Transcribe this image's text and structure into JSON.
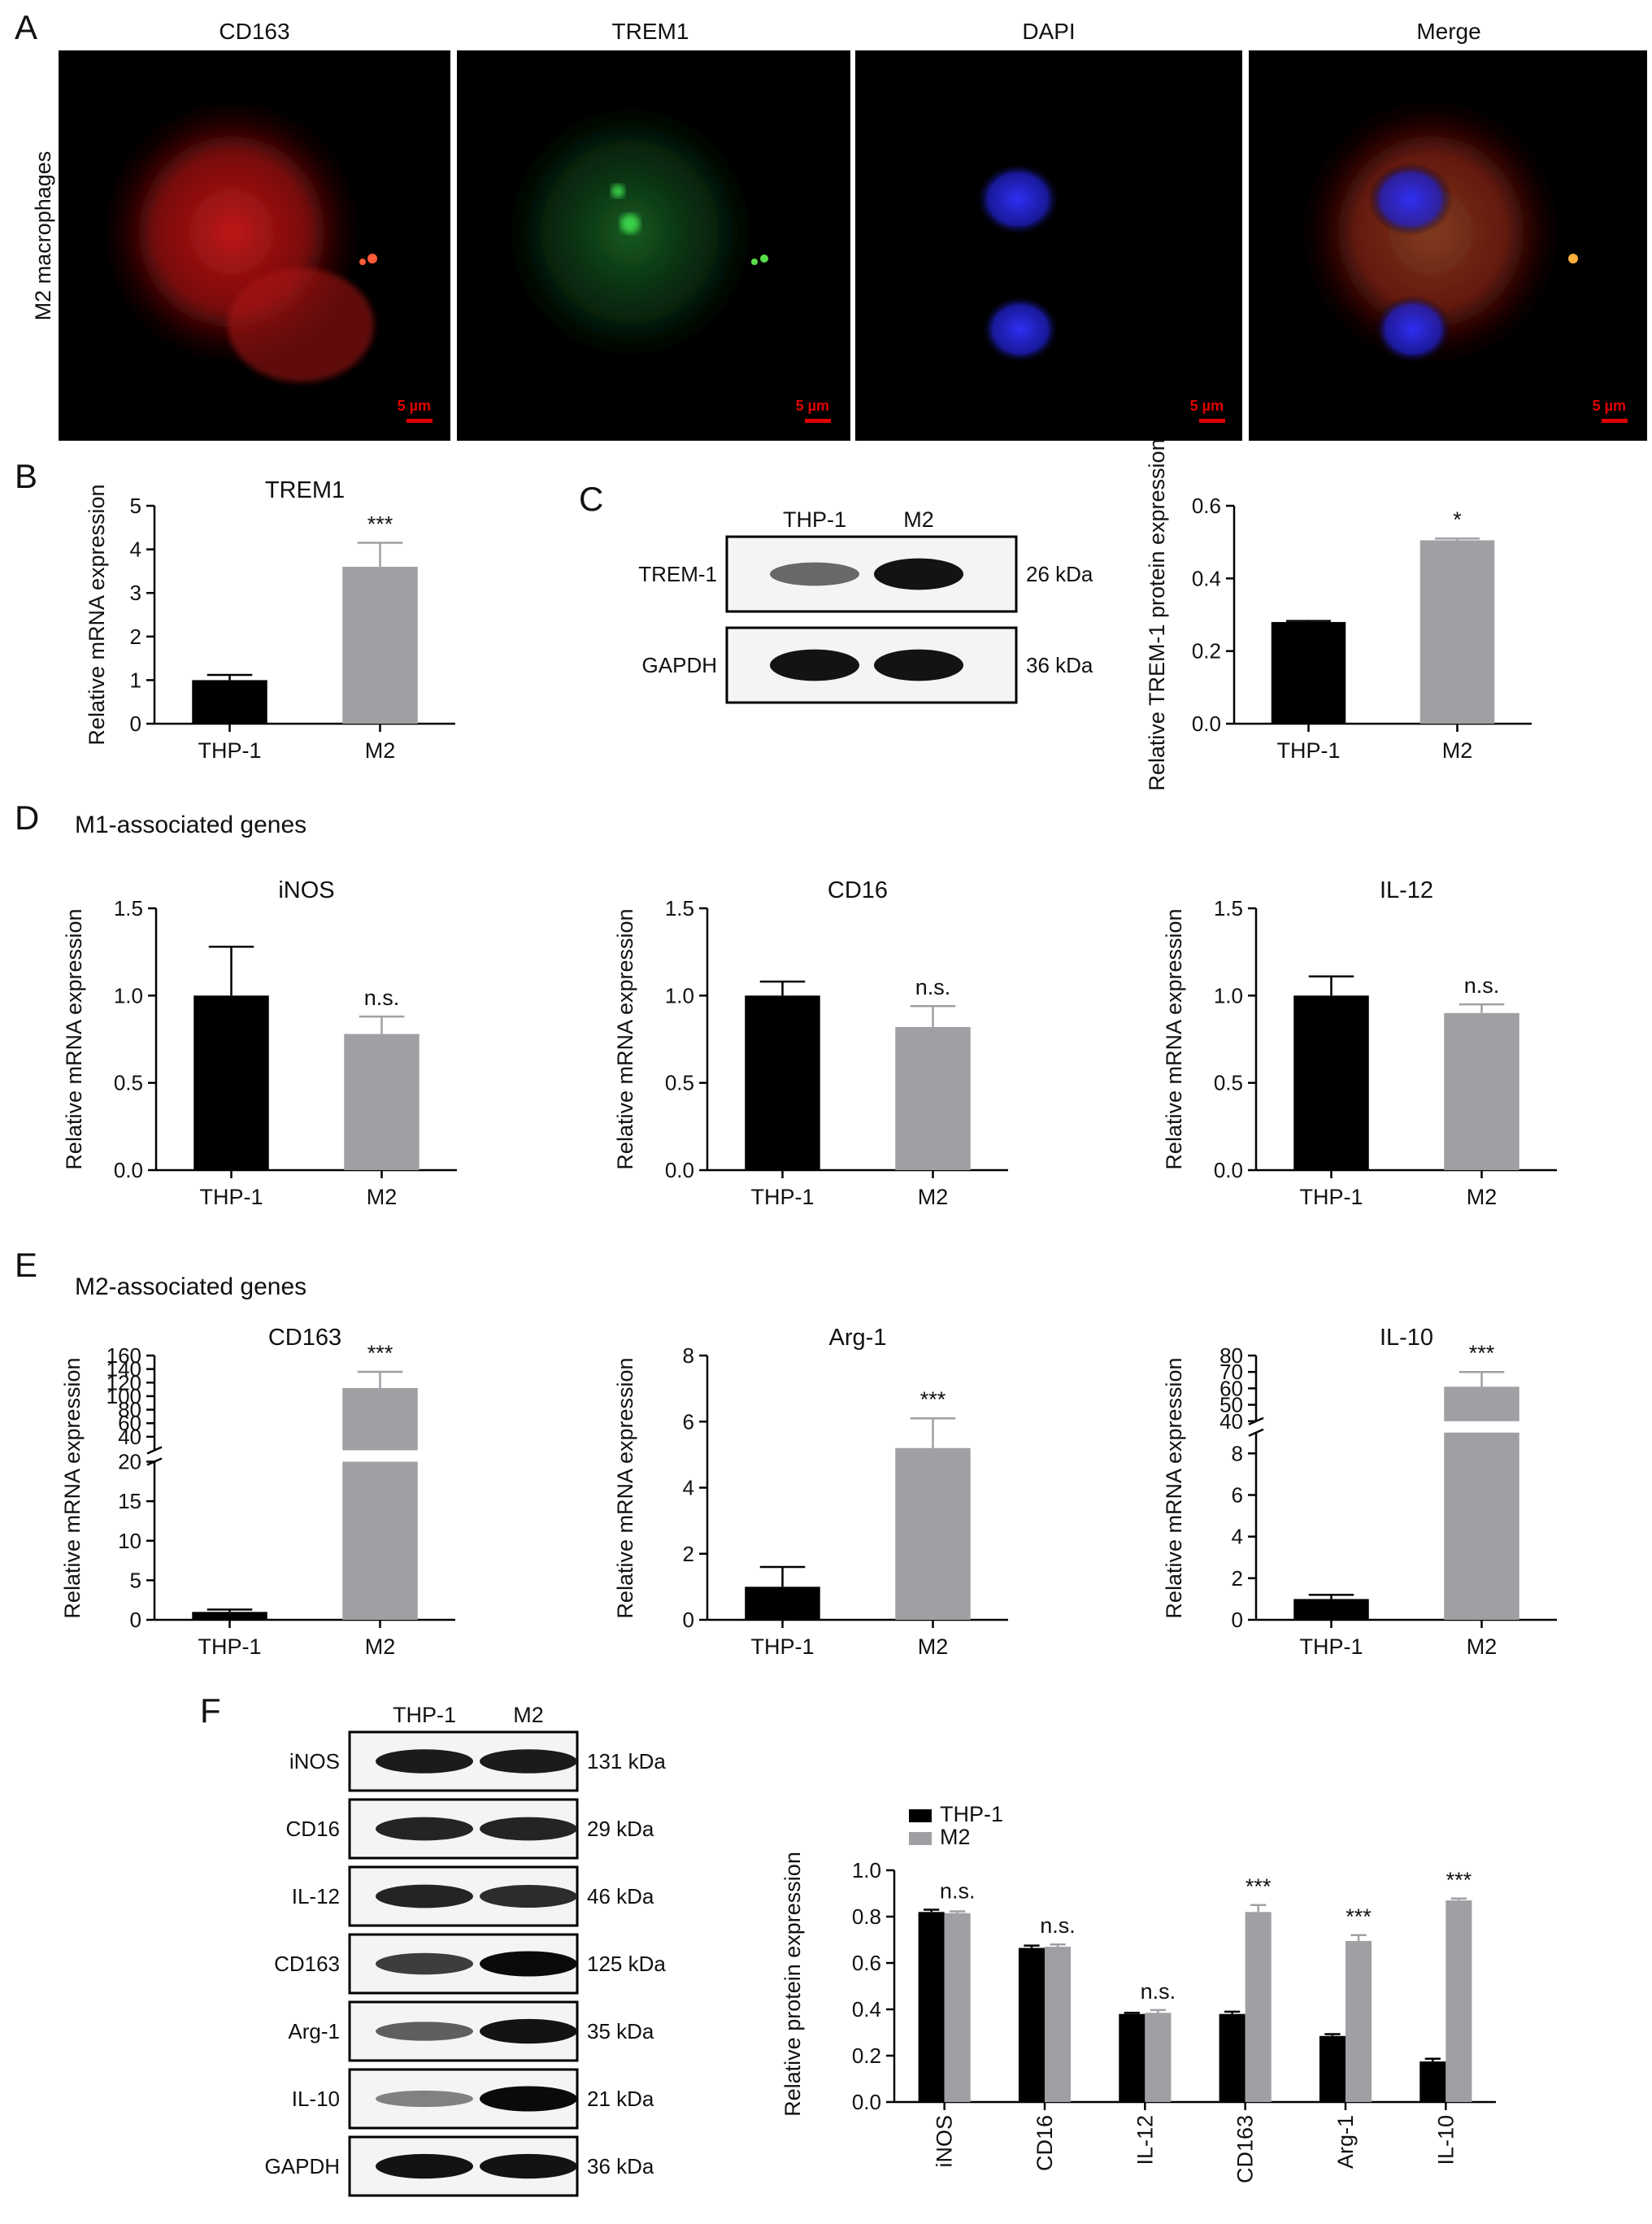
{
  "panel_letters": [
    "A",
    "B",
    "C",
    "D",
    "E",
    "F"
  ],
  "colors": {
    "thp1": "#000000",
    "m2": "#a0a0a4",
    "scale": "#e00000",
    "red": "#d01515",
    "green": "#22a43a",
    "blue": "#2727e6"
  },
  "panel_a": {
    "row_label": "M2 macrophages",
    "titles": [
      "CD163",
      "TREM1",
      "DAPI",
      "Merge"
    ],
    "scale_label": "5 µm"
  },
  "blots_c": {
    "lanes": [
      "THP-1",
      "M2"
    ],
    "rows": [
      {
        "label": "TREM-1",
        "kda": "26 kDa",
        "intensities": [
          0.45,
          0.95
        ]
      },
      {
        "label": "GAPDH",
        "kda": "36 kDa",
        "intensities": [
          0.95,
          0.95
        ]
      }
    ]
  },
  "blots_f": {
    "lanes": [
      "THP-1",
      "M2"
    ],
    "rows": [
      {
        "label": "iNOS",
        "kda": "131 kDa",
        "intensities": [
          0.9,
          0.9
        ]
      },
      {
        "label": "CD16",
        "kda": "29 kDa",
        "intensities": [
          0.85,
          0.85
        ]
      },
      {
        "label": "IL-12",
        "kda": "46 kDa",
        "intensities": [
          0.85,
          0.8
        ]
      },
      {
        "label": "CD163",
        "kda": "125 kDa",
        "intensities": [
          0.7,
          1.0
        ]
      },
      {
        "label": "Arg-1",
        "kda": "35 kDa",
        "intensities": [
          0.5,
          0.95
        ]
      },
      {
        "label": "IL-10",
        "kda": "21 kDa",
        "intensities": [
          0.3,
          1.0
        ]
      },
      {
        "label": "GAPDH",
        "kda": "36 kDa",
        "intensities": [
          0.95,
          0.95
        ]
      }
    ]
  },
  "chart_data": [
    {
      "id": "B",
      "type": "bar",
      "title": "TREM1",
      "ylabel": "Relative mRNA expression",
      "ylim": [
        0,
        5
      ],
      "yticks": [
        0,
        1,
        2,
        3,
        4,
        5
      ],
      "categories": [
        "THP-1",
        "M2"
      ],
      "values": [
        1.0,
        3.6
      ],
      "errors": [
        0.12,
        0.55
      ],
      "sig": [
        "",
        "***"
      ]
    },
    {
      "id": "C",
      "type": "bar",
      "title": "",
      "ylabel": "Relative TREM-1 protein expression",
      "ylim": [
        0,
        0.6
      ],
      "yticks": [
        0.0,
        0.2,
        0.4,
        0.6
      ],
      "categories": [
        "THP-1",
        "M2"
      ],
      "values": [
        0.28,
        0.505
      ],
      "errors": [
        0.003,
        0.005
      ],
      "sig": [
        "",
        "*"
      ]
    },
    {
      "id": "D1",
      "type": "bar",
      "group_title": "M1-associated genes",
      "title": "iNOS",
      "ylabel": "Relative mRNA expression",
      "ylim": [
        0,
        1.5
      ],
      "yticks": [
        0.0,
        0.5,
        1.0,
        1.5
      ],
      "categories": [
        "THP-1",
        "M2"
      ],
      "values": [
        1.0,
        0.78
      ],
      "errors": [
        0.28,
        0.1
      ],
      "sig": [
        "",
        "n.s."
      ]
    },
    {
      "id": "D2",
      "type": "bar",
      "title": "CD16",
      "ylabel": "Relative mRNA expression",
      "ylim": [
        0,
        1.5
      ],
      "yticks": [
        0.0,
        0.5,
        1.0,
        1.5
      ],
      "categories": [
        "THP-1",
        "M2"
      ],
      "values": [
        1.0,
        0.82
      ],
      "errors": [
        0.08,
        0.12
      ],
      "sig": [
        "",
        "n.s."
      ]
    },
    {
      "id": "D3",
      "type": "bar",
      "title": "IL-12",
      "ylabel": "Relative mRNA expression",
      "ylim": [
        0,
        1.5
      ],
      "yticks": [
        0.0,
        0.5,
        1.0,
        1.5
      ],
      "categories": [
        "THP-1",
        "M2"
      ],
      "values": [
        1.0,
        0.9
      ],
      "errors": [
        0.11,
        0.05
      ],
      "sig": [
        "",
        "n.s."
      ]
    },
    {
      "id": "E1",
      "type": "bar",
      "group_title": "M2-associated genes",
      "title": "CD163",
      "ylabel": "Relative mRNA expression",
      "broken_axis": {
        "lower": [
          0,
          20
        ],
        "upper": [
          20,
          160
        ]
      },
      "yticks_lower": [
        0,
        5,
        10,
        15,
        20
      ],
      "yticks_upper": [
        20,
        40,
        60,
        80,
        100,
        120,
        140,
        160
      ],
      "categories": [
        "THP-1",
        "M2"
      ],
      "values": [
        1.0,
        112
      ],
      "errors": [
        0.3,
        24
      ],
      "sig": [
        "",
        "***"
      ]
    },
    {
      "id": "E2",
      "type": "bar",
      "title": "Arg-1",
      "ylabel": "Relative mRNA expression",
      "ylim": [
        0,
        8
      ],
      "yticks": [
        0,
        2,
        4,
        6,
        8
      ],
      "categories": [
        "THP-1",
        "M2"
      ],
      "values": [
        1.0,
        5.2
      ],
      "errors": [
        0.6,
        0.9
      ],
      "sig": [
        "",
        "***"
      ]
    },
    {
      "id": "E3",
      "type": "bar",
      "title": "IL-10",
      "ylabel": "Relative mRNA expression",
      "broken_axis": {
        "lower": [
          0,
          9
        ],
        "upper": [
          40,
          80
        ]
      },
      "yticks_lower": [
        0,
        2,
        4,
        6,
        8
      ],
      "yticks_upper": [
        40,
        50,
        60,
        70,
        80
      ],
      "categories": [
        "THP-1",
        "M2"
      ],
      "values": [
        1.0,
        61
      ],
      "errors": [
        0.2,
        9
      ],
      "sig": [
        "",
        "***"
      ]
    },
    {
      "id": "F",
      "type": "bar",
      "title": "",
      "ylabel": "Relative protein expression",
      "ylim": [
        0,
        1.0
      ],
      "yticks": [
        0.0,
        0.2,
        0.4,
        0.6,
        0.8,
        1.0
      ],
      "legend_position": "top-left",
      "categories": [
        "iNOS",
        "CD16",
        "IL-12",
        "CD163",
        "Arg-1",
        "IL-10"
      ],
      "series": [
        {
          "name": "THP-1",
          "values": [
            0.82,
            0.665,
            0.38,
            0.38,
            0.285,
            0.175
          ],
          "errors": [
            0.01,
            0.01,
            0.005,
            0.01,
            0.008,
            0.012
          ]
        },
        {
          "name": "M2",
          "values": [
            0.815,
            0.67,
            0.385,
            0.82,
            0.695,
            0.87
          ],
          "errors": [
            0.008,
            0.01,
            0.012,
            0.03,
            0.025,
            0.008
          ]
        }
      ],
      "sig": [
        "n.s.",
        "n.s.",
        "n.s.",
        "***",
        "***",
        "***"
      ]
    }
  ]
}
